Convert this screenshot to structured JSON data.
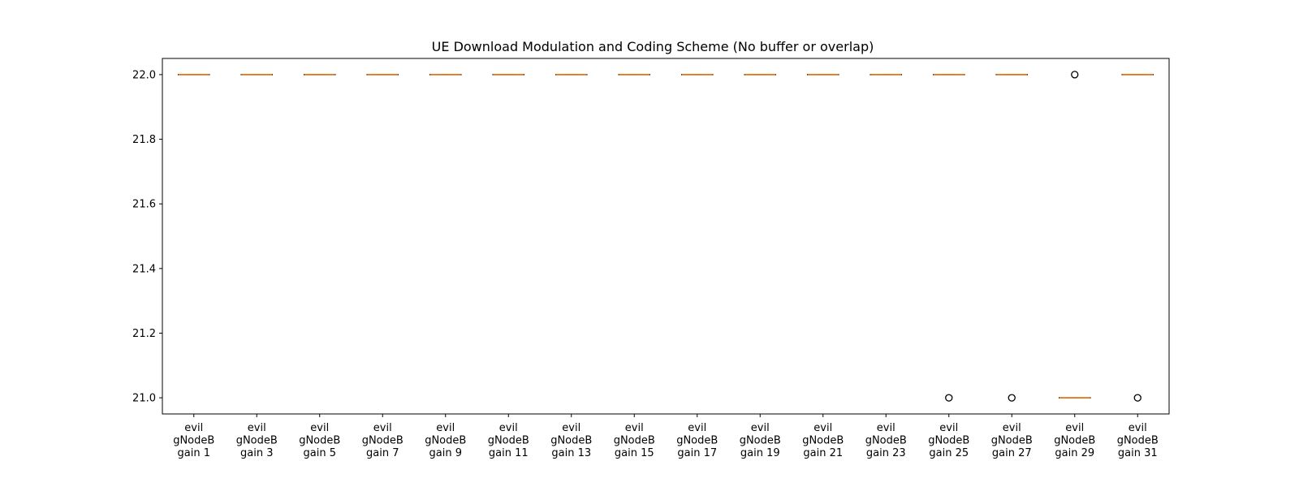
{
  "chart_data": {
    "type": "box",
    "title": "UE Download Modulation and Coding Scheme (No buffer or overlap)",
    "xlabel": "",
    "ylabel": "",
    "ylim": [
      20.95,
      22.05
    ],
    "yticks": [
      "21.0",
      "21.2",
      "21.4",
      "21.6",
      "21.8",
      "22.0"
    ],
    "grid": false,
    "colors": {
      "median": "#ff7f0e",
      "box": "#000000",
      "flier": "#000000"
    },
    "categories": [
      [
        "evil",
        "gNodeB",
        "gain 1"
      ],
      [
        "evil",
        "gNodeB",
        "gain 3"
      ],
      [
        "evil",
        "gNodeB",
        "gain 5"
      ],
      [
        "evil",
        "gNodeB",
        "gain 7"
      ],
      [
        "evil",
        "gNodeB",
        "gain 9"
      ],
      [
        "evil",
        "gNodeB",
        "gain 11"
      ],
      [
        "evil",
        "gNodeB",
        "gain 13"
      ],
      [
        "evil",
        "gNodeB",
        "gain 15"
      ],
      [
        "evil",
        "gNodeB",
        "gain 17"
      ],
      [
        "evil",
        "gNodeB",
        "gain 19"
      ],
      [
        "evil",
        "gNodeB",
        "gain 21"
      ],
      [
        "evil",
        "gNodeB",
        "gain 23"
      ],
      [
        "evil",
        "gNodeB",
        "gain 25"
      ],
      [
        "evil",
        "gNodeB",
        "gain 27"
      ],
      [
        "evil",
        "gNodeB",
        "gain 29"
      ],
      [
        "evil",
        "gNodeB",
        "gain 31"
      ]
    ],
    "boxes": [
      {
        "median": 22,
        "q1": 22,
        "q3": 22,
        "whislo": 22,
        "whishi": 22,
        "fliers": []
      },
      {
        "median": 22,
        "q1": 22,
        "q3": 22,
        "whislo": 22,
        "whishi": 22,
        "fliers": []
      },
      {
        "median": 22,
        "q1": 22,
        "q3": 22,
        "whislo": 22,
        "whishi": 22,
        "fliers": []
      },
      {
        "median": 22,
        "q1": 22,
        "q3": 22,
        "whislo": 22,
        "whishi": 22,
        "fliers": []
      },
      {
        "median": 22,
        "q1": 22,
        "q3": 22,
        "whislo": 22,
        "whishi": 22,
        "fliers": []
      },
      {
        "median": 22,
        "q1": 22,
        "q3": 22,
        "whislo": 22,
        "whishi": 22,
        "fliers": []
      },
      {
        "median": 22,
        "q1": 22,
        "q3": 22,
        "whislo": 22,
        "whishi": 22,
        "fliers": []
      },
      {
        "median": 22,
        "q1": 22,
        "q3": 22,
        "whislo": 22,
        "whishi": 22,
        "fliers": []
      },
      {
        "median": 22,
        "q1": 22,
        "q3": 22,
        "whislo": 22,
        "whishi": 22,
        "fliers": []
      },
      {
        "median": 22,
        "q1": 22,
        "q3": 22,
        "whislo": 22,
        "whishi": 22,
        "fliers": []
      },
      {
        "median": 22,
        "q1": 22,
        "q3": 22,
        "whislo": 22,
        "whishi": 22,
        "fliers": []
      },
      {
        "median": 22,
        "q1": 22,
        "q3": 22,
        "whislo": 22,
        "whishi": 22,
        "fliers": []
      },
      {
        "median": 22,
        "q1": 22,
        "q3": 22,
        "whislo": 22,
        "whishi": 22,
        "fliers": [
          21
        ]
      },
      {
        "median": 22,
        "q1": 22,
        "q3": 22,
        "whislo": 22,
        "whishi": 22,
        "fliers": [
          21
        ]
      },
      {
        "median": 21,
        "q1": 21,
        "q3": 21,
        "whislo": 21,
        "whishi": 21,
        "fliers": [
          22
        ]
      },
      {
        "median": 22,
        "q1": 22,
        "q3": 22,
        "whislo": 22,
        "whishi": 22,
        "fliers": [
          21
        ]
      }
    ]
  }
}
